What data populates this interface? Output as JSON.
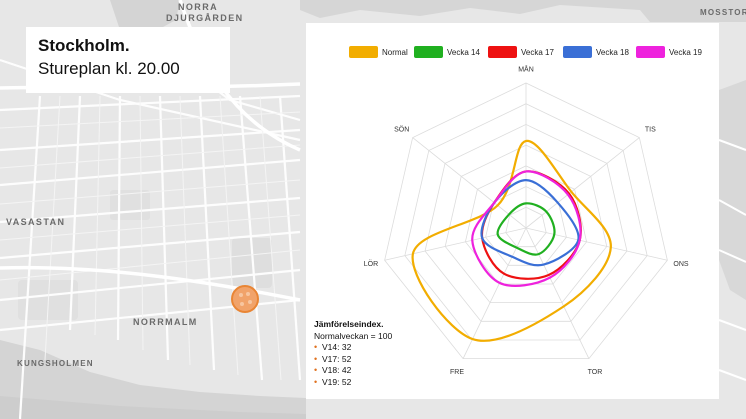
{
  "map": {
    "labels": [
      {
        "text": "NORRA",
        "size": "big"
      },
      {
        "text": "DJURGÅRDEN",
        "size": "big"
      },
      {
        "text": "VASASTAN",
        "size": "big"
      },
      {
        "text": "NORRMALM",
        "size": "big"
      },
      {
        "text": "KUNGSHOLMEN",
        "size": "small"
      },
      {
        "text": "MOSSTORP",
        "size": "small"
      }
    ],
    "marker_color": "#e98534"
  },
  "title_card": {
    "city": "Stockholm.",
    "place": "Stureplan kl. 20.00"
  },
  "chart_data": {
    "type": "radar",
    "axes": [
      "MÅN",
      "TIS",
      "ONS",
      "TOR",
      "FRE",
      "LÖR",
      "SÖN"
    ],
    "rmax": 100,
    "rings": 7,
    "grid": true,
    "legend_position": "top",
    "series": [
      {
        "name": "Normal",
        "color": "#f2ad00",
        "values": [
          60,
          40,
          60,
          60,
          85,
          80,
          25
        ]
      },
      {
        "name": "Vecka 14",
        "color": "#20b020",
        "values": [
          17,
          18,
          20,
          20,
          15,
          20,
          15
        ]
      },
      {
        "name": "Vecka 17",
        "color": "#ee1111",
        "values": [
          39,
          38,
          38,
          36,
          35,
          31,
          28
        ]
      },
      {
        "name": "Vecka 18",
        "color": "#3a6fd6",
        "values": [
          33,
          28,
          37,
          28,
          22,
          31,
          28
        ]
      },
      {
        "name": "Vecka 19",
        "color": "#ee22dd",
        "values": [
          39,
          37,
          38,
          38,
          42,
          38,
          28
        ]
      }
    ]
  },
  "info": {
    "title": "Jämförelseindex.",
    "subtitle": "Normalveckan = 100",
    "items": [
      "V14: 32",
      "V17: 52",
      "V18: 42",
      "V19: 52"
    ]
  }
}
